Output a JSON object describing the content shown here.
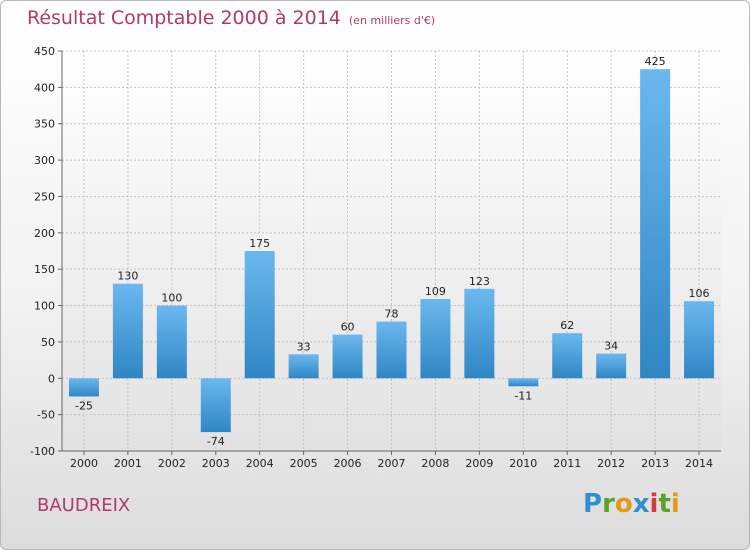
{
  "title": "Résultat Comptable 2000 à 2014",
  "subtitle": "(en milliers d'€)",
  "town": "BAUDREIX",
  "logo": {
    "letters": [
      "P",
      "r",
      "o",
      "x",
      "i",
      "t",
      "i"
    ],
    "colors": [
      "#2f8fd0",
      "#5aa02c",
      "#e29a1a",
      "#2f8fd0",
      "#d43a3a",
      "#5aa02c",
      "#e29a1a"
    ]
  },
  "chart_data": {
    "type": "bar",
    "title": "Résultat Comptable 2000 à 2014",
    "xlabel": "",
    "ylabel": "en milliers d'€",
    "categories": [
      "2000",
      "2001",
      "2002",
      "2003",
      "2004",
      "2005",
      "2006",
      "2007",
      "2008",
      "2009",
      "2010",
      "2011",
      "2012",
      "2013",
      "2014"
    ],
    "values": [
      -25,
      130,
      100,
      -74,
      175,
      33,
      60,
      78,
      109,
      123,
      -11,
      62,
      34,
      425,
      106
    ],
    "value_labels": [
      "-25",
      "130",
      "100",
      "-74",
      "175",
      "33",
      "60",
      "78",
      "109",
      "123",
      "-11",
      "62",
      "34",
      "425",
      "106"
    ],
    "ylim": [
      -100,
      450
    ],
    "yticks": [
      -100,
      -50,
      0,
      50,
      100,
      150,
      200,
      250,
      300,
      350,
      400,
      450
    ],
    "grid": true,
    "bar_color_light": "#6bb8ef",
    "bar_color_dark": "#2f86c4"
  }
}
